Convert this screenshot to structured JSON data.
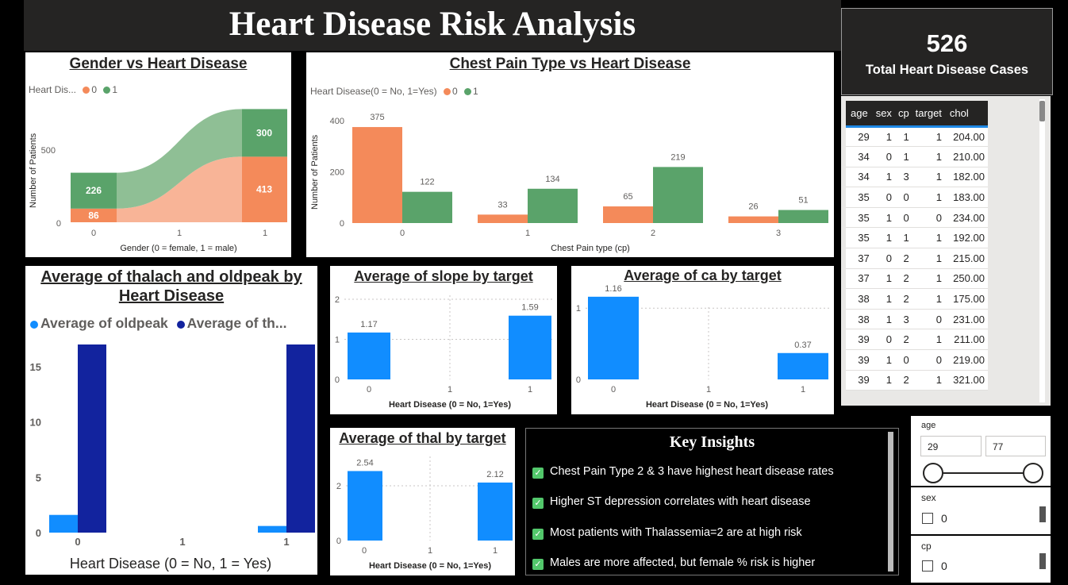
{
  "dashboard_title": "Heart Disease Risk Analysis",
  "kpi": {
    "value": "526",
    "label": "Total Heart Disease Cases"
  },
  "colors": {
    "no": "#f48a5a",
    "yes": "#5aa36a",
    "no_light": "#f8b497",
    "yes_light": "#8fbf95",
    "blue": "#118dff",
    "navy": "#12239e",
    "dark": "#252423"
  },
  "legend_targets": [
    "0",
    "1"
  ],
  "gender_chart": {
    "title": "Gender vs Heart Disease",
    "legend_label": "Heart Dis...",
    "ylabel": "Number of Patients",
    "xlabel": "Gender (0 = female, 1 = male)",
    "yticks": [
      "0",
      "500"
    ],
    "xticks": [
      "0",
      "1",
      "1"
    ]
  },
  "cp_chart": {
    "title": "Chest Pain Type vs Heart Disease",
    "legend_label": "Heart Disease(0 = No, 1=Yes)",
    "ylabel": "Number of Patients",
    "xlabel": "Chest Pain type (cp)",
    "yticks": [
      "0",
      "200",
      "400"
    ]
  },
  "thalach_chart": {
    "title": "Average of thalach and oldpeak by Heart Disease",
    "legend": [
      "Average of oldpeak",
      "Average of th..."
    ],
    "xlabel": "Heart Disease (0 = No, 1 = Yes)",
    "yticks": [
      "0",
      "5",
      "10",
      "15"
    ],
    "xticks": [
      "0",
      "1",
      "1"
    ]
  },
  "slope_chart": {
    "title": "Average of slope by target",
    "xlabel": "Heart Disease (0 = No, 1=Yes)",
    "yticks": [
      "0",
      "1",
      "2"
    ],
    "xticks": [
      "0",
      "1",
      "1"
    ]
  },
  "ca_chart": {
    "title": "Average of ca by target",
    "xlabel": "Heart Disease (0 = No, 1=Yes)",
    "yticks": [
      "0",
      "1"
    ],
    "xticks": [
      "0",
      "1",
      "1"
    ]
  },
  "thal_chart": {
    "title": "Average of thal by target",
    "xlabel": "Heart Disease (0 = No, 1=Yes)",
    "yticks": [
      "0",
      "2"
    ],
    "xticks": [
      "0",
      "1",
      "1"
    ]
  },
  "chart_data": [
    {
      "type": "area",
      "title": "Gender vs Heart Disease",
      "xlabel": "Gender (0 = female, 1 = male)",
      "ylabel": "Number of Patients",
      "categories": [
        "0",
        "1"
      ],
      "series": [
        {
          "name": "0",
          "values": [
            86,
            413
          ]
        },
        {
          "name": "1",
          "values": [
            226,
            300
          ]
        }
      ],
      "ylim": [
        0,
        740
      ]
    },
    {
      "type": "bar",
      "title": "Chest Pain Type vs Heart Disease",
      "xlabel": "Chest Pain type (cp)",
      "ylabel": "Number of Patients",
      "categories": [
        "0",
        "1",
        "2",
        "3"
      ],
      "series": [
        {
          "name": "0",
          "values": [
            375,
            33,
            65,
            26
          ]
        },
        {
          "name": "1",
          "values": [
            122,
            134,
            219,
            51
          ]
        }
      ],
      "ylim": [
        0,
        400
      ]
    },
    {
      "type": "bar",
      "title": "Average of thalach and oldpeak by Heart Disease",
      "xlabel": "Heart Disease (0 = No, 1 = Yes)",
      "categories": [
        "0",
        "1"
      ],
      "series": [
        {
          "name": "Average of oldpeak",
          "values": [
            1.6,
            0.6
          ]
        },
        {
          "name": "Average of th...",
          "values": [
            17,
            17
          ]
        }
      ],
      "ylim": [
        0,
        17.5
      ]
    },
    {
      "type": "bar",
      "title": "Average of slope by target",
      "xlabel": "Heart Disease (0 = No, 1=Yes)",
      "categories": [
        "0",
        "1"
      ],
      "values": [
        1.17,
        1.59
      ],
      "labels": [
        "1.17",
        "1.59"
      ],
      "ylim": [
        0,
        2
      ]
    },
    {
      "type": "bar",
      "title": "Average of ca by target",
      "xlabel": "Heart Disease (0 = No, 1=Yes)",
      "categories": [
        "0",
        "1"
      ],
      "values": [
        1.16,
        0.37
      ],
      "labels": [
        "1.16",
        "0.37"
      ],
      "ylim": [
        0,
        1.4
      ]
    },
    {
      "type": "bar",
      "title": "Average of thal by target",
      "xlabel": "Heart Disease (0 = No, 1=Yes)",
      "categories": [
        "0",
        "1"
      ],
      "values": [
        2.54,
        2.12
      ],
      "labels": [
        "2.54",
        "2.12"
      ],
      "ylim": [
        0,
        3.1
      ]
    }
  ],
  "table": {
    "columns": [
      "age",
      "sex",
      "cp",
      "target",
      "chol"
    ],
    "rows": [
      [
        "29",
        "1",
        "1",
        "1",
        "204.00"
      ],
      [
        "34",
        "0",
        "1",
        "1",
        "210.00"
      ],
      [
        "34",
        "1",
        "3",
        "1",
        "182.00"
      ],
      [
        "35",
        "0",
        "0",
        "1",
        "183.00"
      ],
      [
        "35",
        "1",
        "0",
        "0",
        "234.00"
      ],
      [
        "35",
        "1",
        "1",
        "1",
        "192.00"
      ],
      [
        "37",
        "0",
        "2",
        "1",
        "215.00"
      ],
      [
        "37",
        "1",
        "2",
        "1",
        "250.00"
      ],
      [
        "38",
        "1",
        "2",
        "1",
        "175.00"
      ],
      [
        "38",
        "1",
        "3",
        "0",
        "231.00"
      ],
      [
        "39",
        "0",
        "2",
        "1",
        "211.00"
      ],
      [
        "39",
        "1",
        "0",
        "0",
        "219.00"
      ],
      [
        "39",
        "1",
        "2",
        "1",
        "321.00"
      ]
    ]
  },
  "insights": {
    "title": "Key Insights",
    "items": [
      "Chest Pain Type 2 & 3 have highest heart disease rates",
      "Higher ST depression correlates with heart disease",
      "Most patients with Thalassemia=2 are at high risk",
      "Males are more affected, but female % risk is higher"
    ]
  },
  "slicers": {
    "age": {
      "label": "age",
      "min": "29",
      "max": "77"
    },
    "sex": {
      "label": "sex",
      "option": "0"
    },
    "cp": {
      "label": "cp",
      "option": "0"
    }
  }
}
